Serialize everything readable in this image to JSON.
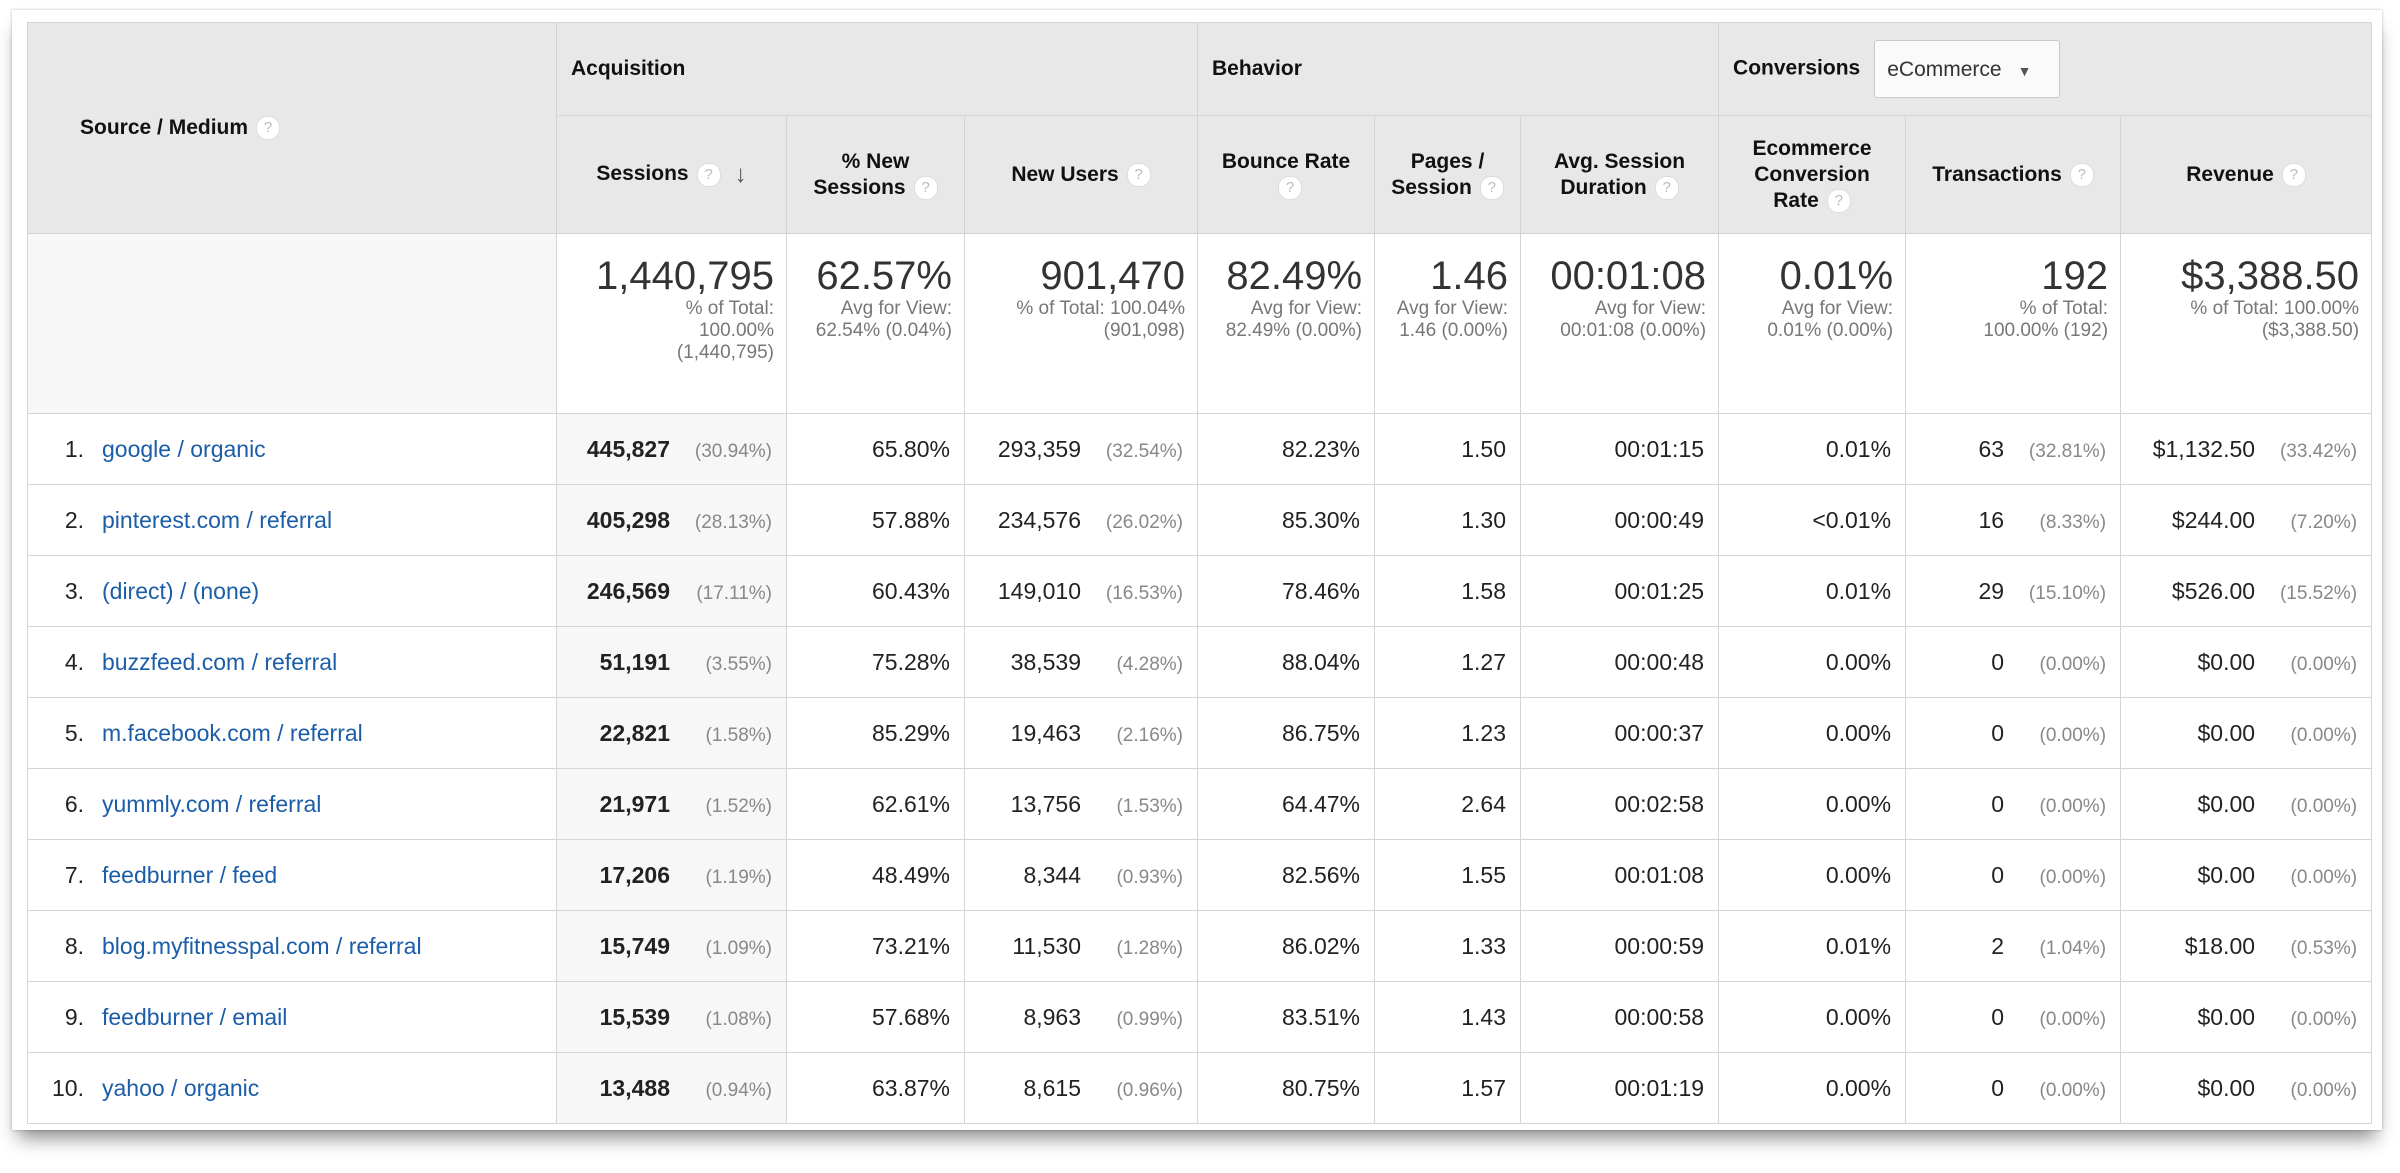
{
  "header": {
    "source_medium": "Source / Medium",
    "groups": {
      "acquisition": "Acquisition",
      "behavior": "Behavior",
      "conversions": "Conversions"
    },
    "conversions_dropdown": "eCommerce",
    "columns": [
      "Sessions",
      "% New Sessions",
      "New Users",
      "Bounce Rate",
      "Pages / Session",
      "Avg. Session Duration",
      "Ecommerce Conversion Rate",
      "Transactions",
      "Revenue"
    ],
    "help_icon": "?",
    "sort_icon": "↓"
  },
  "summary": [
    {
      "value": "1,440,795",
      "sub": "% of Total: 100.00% (1,440,795)"
    },
    {
      "value": "62.57%",
      "sub": "Avg for View: 62.54% (0.04%)"
    },
    {
      "value": "901,470",
      "sub": "% of Total: 100.04% (901,098)"
    },
    {
      "value": "82.49%",
      "sub": "Avg for View: 82.49% (0.00%)"
    },
    {
      "value": "1.46",
      "sub": "Avg for View: 1.46 (0.00%)"
    },
    {
      "value": "00:01:08",
      "sub": "Avg for View: 00:01:08 (0.00%)"
    },
    {
      "value": "0.01%",
      "sub": "Avg for View: 0.01% (0.00%)"
    },
    {
      "value": "192",
      "sub": "% of Total: 100.00% (192)"
    },
    {
      "value": "$3,388.50",
      "sub": "% of Total: 100.00% ($3,388.50)"
    }
  ],
  "rows": [
    {
      "n": "1.",
      "source": "google / organic",
      "sessions": "445,827",
      "sessions_pct": "(30.94%)",
      "new_sessions": "65.80%",
      "new_users": "293,359",
      "new_users_pct": "(32.54%)",
      "bounce": "82.23%",
      "pages": "1.50",
      "duration": "00:01:15",
      "conv": "0.01%",
      "transactions": "63",
      "transactions_pct": "(32.81%)",
      "revenue": "$1,132.50",
      "revenue_pct": "(33.42%)"
    },
    {
      "n": "2.",
      "source": "pinterest.com / referral",
      "sessions": "405,298",
      "sessions_pct": "(28.13%)",
      "new_sessions": "57.88%",
      "new_users": "234,576",
      "new_users_pct": "(26.02%)",
      "bounce": "85.30%",
      "pages": "1.30",
      "duration": "00:00:49",
      "conv": "<0.01%",
      "transactions": "16",
      "transactions_pct": "(8.33%)",
      "revenue": "$244.00",
      "revenue_pct": "(7.20%)"
    },
    {
      "n": "3.",
      "source": "(direct) / (none)",
      "sessions": "246,569",
      "sessions_pct": "(17.11%)",
      "new_sessions": "60.43%",
      "new_users": "149,010",
      "new_users_pct": "(16.53%)",
      "bounce": "78.46%",
      "pages": "1.58",
      "duration": "00:01:25",
      "conv": "0.01%",
      "transactions": "29",
      "transactions_pct": "(15.10%)",
      "revenue": "$526.00",
      "revenue_pct": "(15.52%)"
    },
    {
      "n": "4.",
      "source": "buzzfeed.com / referral",
      "sessions": "51,191",
      "sessions_pct": "(3.55%)",
      "new_sessions": "75.28%",
      "new_users": "38,539",
      "new_users_pct": "(4.28%)",
      "bounce": "88.04%",
      "pages": "1.27",
      "duration": "00:00:48",
      "conv": "0.00%",
      "transactions": "0",
      "transactions_pct": "(0.00%)",
      "revenue": "$0.00",
      "revenue_pct": "(0.00%)"
    },
    {
      "n": "5.",
      "source": "m.facebook.com / referral",
      "sessions": "22,821",
      "sessions_pct": "(1.58%)",
      "new_sessions": "85.29%",
      "new_users": "19,463",
      "new_users_pct": "(2.16%)",
      "bounce": "86.75%",
      "pages": "1.23",
      "duration": "00:00:37",
      "conv": "0.00%",
      "transactions": "0",
      "transactions_pct": "(0.00%)",
      "revenue": "$0.00",
      "revenue_pct": "(0.00%)"
    },
    {
      "n": "6.",
      "source": "yummly.com / referral",
      "sessions": "21,971",
      "sessions_pct": "(1.52%)",
      "new_sessions": "62.61%",
      "new_users": "13,756",
      "new_users_pct": "(1.53%)",
      "bounce": "64.47%",
      "pages": "2.64",
      "duration": "00:02:58",
      "conv": "0.00%",
      "transactions": "0",
      "transactions_pct": "(0.00%)",
      "revenue": "$0.00",
      "revenue_pct": "(0.00%)"
    },
    {
      "n": "7.",
      "source": "feedburner / feed",
      "sessions": "17,206",
      "sessions_pct": "(1.19%)",
      "new_sessions": "48.49%",
      "new_users": "8,344",
      "new_users_pct": "(0.93%)",
      "bounce": "82.56%",
      "pages": "1.55",
      "duration": "00:01:08",
      "conv": "0.00%",
      "transactions": "0",
      "transactions_pct": "(0.00%)",
      "revenue": "$0.00",
      "revenue_pct": "(0.00%)"
    },
    {
      "n": "8.",
      "source": "blog.myfitnesspal.com / referral",
      "sessions": "15,749",
      "sessions_pct": "(1.09%)",
      "new_sessions": "73.21%",
      "new_users": "11,530",
      "new_users_pct": "(1.28%)",
      "bounce": "86.02%",
      "pages": "1.33",
      "duration": "00:00:59",
      "conv": "0.01%",
      "transactions": "2",
      "transactions_pct": "(1.04%)",
      "revenue": "$18.00",
      "revenue_pct": "(0.53%)"
    },
    {
      "n": "9.",
      "source": "feedburner / email",
      "sessions": "15,539",
      "sessions_pct": "(1.08%)",
      "new_sessions": "57.68%",
      "new_users": "8,963",
      "new_users_pct": "(0.99%)",
      "bounce": "83.51%",
      "pages": "1.43",
      "duration": "00:00:58",
      "conv": "0.00%",
      "transactions": "0",
      "transactions_pct": "(0.00%)",
      "revenue": "$0.00",
      "revenue_pct": "(0.00%)"
    },
    {
      "n": "10.",
      "source": "yahoo / organic",
      "sessions": "13,488",
      "sessions_pct": "(0.94%)",
      "new_sessions": "63.87%",
      "new_users": "8,615",
      "new_users_pct": "(0.96%)",
      "bounce": "80.75%",
      "pages": "1.57",
      "duration": "00:01:19",
      "conv": "0.00%",
      "transactions": "0",
      "transactions_pct": "(0.00%)",
      "revenue": "$0.00",
      "revenue_pct": "(0.00%)"
    }
  ]
}
